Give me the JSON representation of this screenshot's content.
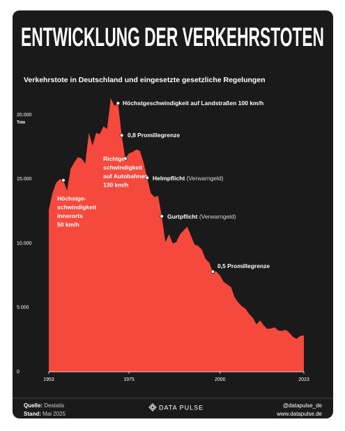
{
  "header": {
    "title": "ENTWICKLUNG DER VERKEHRSTOTEN"
  },
  "chart_data": {
    "type": "area",
    "subtitle": "Verkehrstote in Deutschland und eingesetzte gesetzliche Regelungen",
    "ylabel": "Tote",
    "color": "#f4493c",
    "x": [
      1953,
      1954,
      1955,
      1956,
      1957,
      1958,
      1959,
      1960,
      1961,
      1962,
      1963,
      1964,
      1965,
      1966,
      1967,
      1968,
      1969,
      1970,
      1971,
      1972,
      1973,
      1974,
      1975,
      1976,
      1977,
      1978,
      1979,
      1980,
      1981,
      1982,
      1983,
      1984,
      1985,
      1986,
      1987,
      1988,
      1989,
      1990,
      1991,
      1992,
      1993,
      1994,
      1995,
      1996,
      1997,
      1998,
      1999,
      2000,
      2001,
      2002,
      2003,
      2004,
      2005,
      2006,
      2007,
      2008,
      2009,
      2010,
      2011,
      2012,
      2013,
      2014,
      2015,
      2016,
      2017,
      2018,
      2019,
      2020,
      2021,
      2022,
      2023
    ],
    "values": [
      12600,
      13900,
      14700,
      15000,
      14900,
      14100,
      15800,
      16300,
      16700,
      16600,
      16200,
      18600,
      17600,
      18600,
      18500,
      19100,
      18900,
      21300,
      20700,
      20900,
      18400,
      16600,
      17000,
      17100,
      17300,
      17200,
      16300,
      15100,
      13900,
      13600,
      13700,
      12100,
      10100,
      10700,
      10000,
      10100,
      10700,
      11000,
      11300,
      10600,
      9900,
      9800,
      9500,
      8800,
      8500,
      7800,
      7800,
      7500,
      7000,
      6800,
      6600,
      5800,
      5400,
      5100,
      4900,
      4500,
      4200,
      3700,
      4000,
      3600,
      3340,
      3380,
      3460,
      3210,
      3180,
      3280,
      3050,
      2720,
      2560,
      2790,
      2840
    ],
    "xlim": [
      1953,
      2023
    ],
    "xticks": [
      1953,
      1975,
      2000,
      2023
    ],
    "ylim": [
      0,
      22000
    ],
    "yticks": [
      0,
      {
        "value": 5000,
        "label": "5.000"
      },
      {
        "value": 10000,
        "label": "10.000"
      },
      {
        "value": 15000,
        "label": "15.000"
      },
      {
        "value": 20000,
        "label": "20.000"
      }
    ],
    "annotations": [
      {
        "x": 1957,
        "lines": [
          "Höchstge-",
          "schwindigkeit",
          "innerorts",
          "50 km/h"
        ]
      },
      {
        "x": 1972,
        "lines": [
          "Höchstgeschwindigkeit auf Landstraßen 100 km/h"
        ]
      },
      {
        "x": 1973,
        "lines": [
          "0,8 Promillegrenze"
        ]
      },
      {
        "x": 1974,
        "lines": [
          "Richtge-",
          "schwindigkeit",
          "auf Autobahnen",
          "130 km/h"
        ]
      },
      {
        "x": 1980,
        "lines": [
          "Helmpflicht"
        ],
        "note": "(Verwarngeld)"
      },
      {
        "x": 1984,
        "lines": [
          "Gurtpflicht"
        ],
        "note": "(Verwarngeld)"
      },
      {
        "x": 1998,
        "lines": [
          "0,5 Promillegrenze"
        ]
      }
    ]
  },
  "footer": {
    "source_label": "Quelle:",
    "source": "Destatis",
    "stand_label": "Stand:",
    "stand": "Mai 2025",
    "brand": "DATA PULSE",
    "handle": "@datapulse_de",
    "website": "www.datapulse.de"
  }
}
